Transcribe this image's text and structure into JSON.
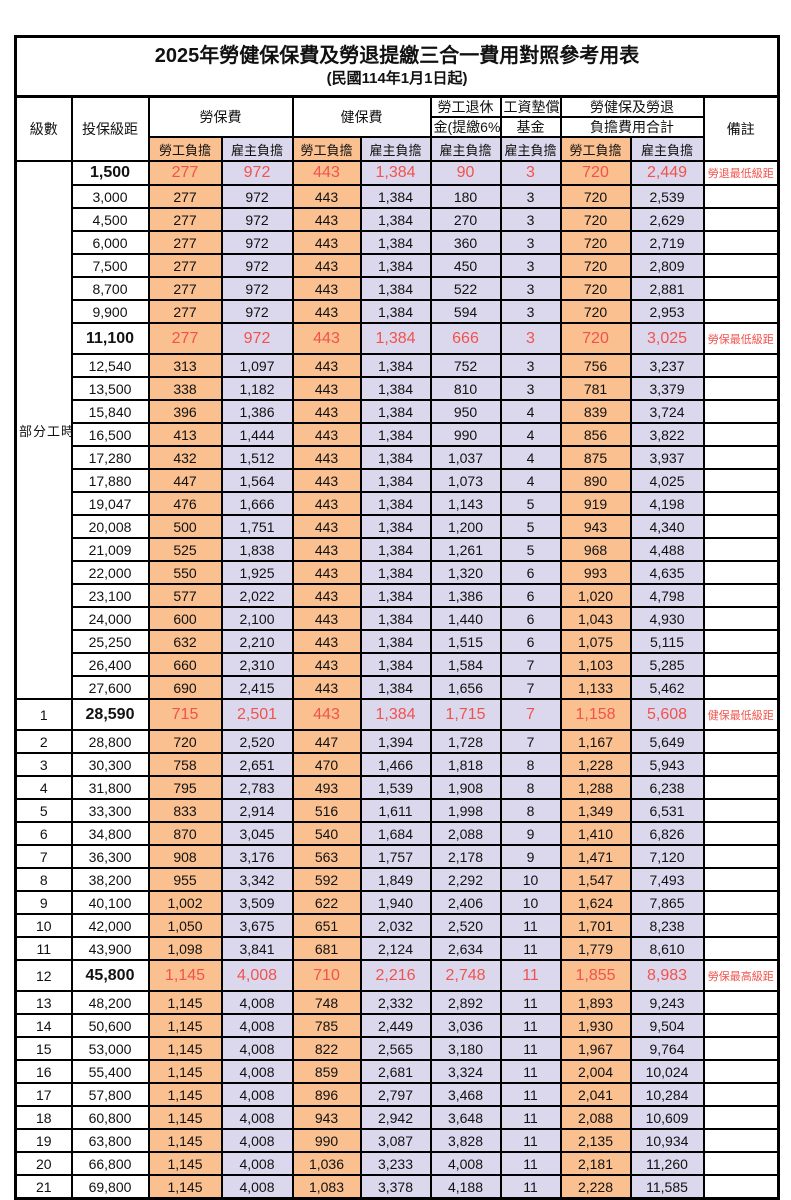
{
  "colors": {
    "employee_bg": "#FAC090",
    "employer_bg": "#DBD8ED",
    "highlight_red": "#F2524C"
  },
  "title": {
    "line1": "2025年勞健保保費及勞退提繳三合一費用對照參考用表",
    "line2": "(民國114年1月1日起)"
  },
  "header": {
    "level": "級數",
    "bracket": "投保級距",
    "labor_group": "勞保費",
    "health_group": "健保費",
    "pension_line1": "勞工退休",
    "pension_line2": "金(提繳6%)",
    "wage_fund_line1": "工資墊償",
    "wage_fund_line2": "基金",
    "total_line1": "勞健保及勞退",
    "total_line2": "負擔費用合計",
    "employee_share": "勞工負擔",
    "employer_share": "雇主負擔",
    "remark": "備註",
    "part_time_label": "部分工時"
  },
  "part_time_span": 23,
  "rows": [
    {
      "level": "",
      "bracket": "1,500",
      "labor_emp": "277",
      "labor_er": "972",
      "health_emp": "443",
      "health_er": "1,384",
      "pension_er": "90",
      "fund_er": "3",
      "total_emp": "720",
      "total_er": "2,449",
      "remark": "勞退最低級距",
      "red": true,
      "first_red": true
    },
    {
      "level": "",
      "bracket": "3,000",
      "labor_emp": "277",
      "labor_er": "972",
      "health_emp": "443",
      "health_er": "1,384",
      "pension_er": "180",
      "fund_er": "3",
      "total_emp": "720",
      "total_er": "2,539",
      "remark": "",
      "red": false
    },
    {
      "level": "",
      "bracket": "4,500",
      "labor_emp": "277",
      "labor_er": "972",
      "health_emp": "443",
      "health_er": "1,384",
      "pension_er": "270",
      "fund_er": "3",
      "total_emp": "720",
      "total_er": "2,629",
      "remark": "",
      "red": false
    },
    {
      "level": "",
      "bracket": "6,000",
      "labor_emp": "277",
      "labor_er": "972",
      "health_emp": "443",
      "health_er": "1,384",
      "pension_er": "360",
      "fund_er": "3",
      "total_emp": "720",
      "total_er": "2,719",
      "remark": "",
      "red": false
    },
    {
      "level": "",
      "bracket": "7,500",
      "labor_emp": "277",
      "labor_er": "972",
      "health_emp": "443",
      "health_er": "1,384",
      "pension_er": "450",
      "fund_er": "3",
      "total_emp": "720",
      "total_er": "2,809",
      "remark": "",
      "red": false
    },
    {
      "level": "",
      "bracket": "8,700",
      "labor_emp": "277",
      "labor_er": "972",
      "health_emp": "443",
      "health_er": "1,384",
      "pension_er": "522",
      "fund_er": "3",
      "total_emp": "720",
      "total_er": "2,881",
      "remark": "",
      "red": false
    },
    {
      "level": "",
      "bracket": "9,900",
      "labor_emp": "277",
      "labor_er": "972",
      "health_emp": "443",
      "health_er": "1,384",
      "pension_er": "594",
      "fund_er": "3",
      "total_emp": "720",
      "total_er": "2,953",
      "remark": "",
      "red": false
    },
    {
      "level": "",
      "bracket": "11,100",
      "labor_emp": "277",
      "labor_er": "972",
      "health_emp": "443",
      "health_er": "1,384",
      "pension_er": "666",
      "fund_er": "3",
      "total_emp": "720",
      "total_er": "3,025",
      "remark": "勞保最低級距",
      "red": true
    },
    {
      "level": "",
      "bracket": "12,540",
      "labor_emp": "313",
      "labor_er": "1,097",
      "health_emp": "443",
      "health_er": "1,384",
      "pension_er": "752",
      "fund_er": "3",
      "total_emp": "756",
      "total_er": "3,237",
      "remark": "",
      "red": false
    },
    {
      "level": "",
      "bracket": "13,500",
      "labor_emp": "338",
      "labor_er": "1,182",
      "health_emp": "443",
      "health_er": "1,384",
      "pension_er": "810",
      "fund_er": "3",
      "total_emp": "781",
      "total_er": "3,379",
      "remark": "",
      "red": false
    },
    {
      "level": "",
      "bracket": "15,840",
      "labor_emp": "396",
      "labor_er": "1,386",
      "health_emp": "443",
      "health_er": "1,384",
      "pension_er": "950",
      "fund_er": "4",
      "total_emp": "839",
      "total_er": "3,724",
      "remark": "",
      "red": false
    },
    {
      "level": "",
      "bracket": "16,500",
      "labor_emp": "413",
      "labor_er": "1,444",
      "health_emp": "443",
      "health_er": "1,384",
      "pension_er": "990",
      "fund_er": "4",
      "total_emp": "856",
      "total_er": "3,822",
      "remark": "",
      "red": false
    },
    {
      "level": "",
      "bracket": "17,280",
      "labor_emp": "432",
      "labor_er": "1,512",
      "health_emp": "443",
      "health_er": "1,384",
      "pension_er": "1,037",
      "fund_er": "4",
      "total_emp": "875",
      "total_er": "3,937",
      "remark": "",
      "red": false
    },
    {
      "level": "",
      "bracket": "17,880",
      "labor_emp": "447",
      "labor_er": "1,564",
      "health_emp": "443",
      "health_er": "1,384",
      "pension_er": "1,073",
      "fund_er": "4",
      "total_emp": "890",
      "total_er": "4,025",
      "remark": "",
      "red": false
    },
    {
      "level": "",
      "bracket": "19,047",
      "labor_emp": "476",
      "labor_er": "1,666",
      "health_emp": "443",
      "health_er": "1,384",
      "pension_er": "1,143",
      "fund_er": "5",
      "total_emp": "919",
      "total_er": "4,198",
      "remark": "",
      "red": false
    },
    {
      "level": "",
      "bracket": "20,008",
      "labor_emp": "500",
      "labor_er": "1,751",
      "health_emp": "443",
      "health_er": "1,384",
      "pension_er": "1,200",
      "fund_er": "5",
      "total_emp": "943",
      "total_er": "4,340",
      "remark": "",
      "red": false
    },
    {
      "level": "",
      "bracket": "21,009",
      "labor_emp": "525",
      "labor_er": "1,838",
      "health_emp": "443",
      "health_er": "1,384",
      "pension_er": "1,261",
      "fund_er": "5",
      "total_emp": "968",
      "total_er": "4,488",
      "remark": "",
      "red": false
    },
    {
      "level": "",
      "bracket": "22,000",
      "labor_emp": "550",
      "labor_er": "1,925",
      "health_emp": "443",
      "health_er": "1,384",
      "pension_er": "1,320",
      "fund_er": "6",
      "total_emp": "993",
      "total_er": "4,635",
      "remark": "",
      "red": false
    },
    {
      "level": "",
      "bracket": "23,100",
      "labor_emp": "577",
      "labor_er": "2,022",
      "health_emp": "443",
      "health_er": "1,384",
      "pension_er": "1,386",
      "fund_er": "6",
      "total_emp": "1,020",
      "total_er": "4,798",
      "remark": "",
      "red": false
    },
    {
      "level": "",
      "bracket": "24,000",
      "labor_emp": "600",
      "labor_er": "2,100",
      "health_emp": "443",
      "health_er": "1,384",
      "pension_er": "1,440",
      "fund_er": "6",
      "total_emp": "1,043",
      "total_er": "4,930",
      "remark": "",
      "red": false
    },
    {
      "level": "",
      "bracket": "25,250",
      "labor_emp": "632",
      "labor_er": "2,210",
      "health_emp": "443",
      "health_er": "1,384",
      "pension_er": "1,515",
      "fund_er": "6",
      "total_emp": "1,075",
      "total_er": "5,115",
      "remark": "",
      "red": false
    },
    {
      "level": "",
      "bracket": "26,400",
      "labor_emp": "660",
      "labor_er": "2,310",
      "health_emp": "443",
      "health_er": "1,384",
      "pension_er": "1,584",
      "fund_er": "7",
      "total_emp": "1,103",
      "total_er": "5,285",
      "remark": "",
      "red": false
    },
    {
      "level": "",
      "bracket": "27,600",
      "labor_emp": "690",
      "labor_er": "2,415",
      "health_emp": "443",
      "health_er": "1,384",
      "pension_er": "1,656",
      "fund_er": "7",
      "total_emp": "1,133",
      "total_er": "5,462",
      "remark": "",
      "red": false
    },
    {
      "level": "1",
      "bracket": "28,590",
      "labor_emp": "715",
      "labor_er": "2,501",
      "health_emp": "443",
      "health_er": "1,384",
      "pension_er": "1,715",
      "fund_er": "7",
      "total_emp": "1,158",
      "total_er": "5,608",
      "remark": "健保最低級距",
      "red": true
    },
    {
      "level": "2",
      "bracket": "28,800",
      "labor_emp": "720",
      "labor_er": "2,520",
      "health_emp": "447",
      "health_er": "1,394",
      "pension_er": "1,728",
      "fund_er": "7",
      "total_emp": "1,167",
      "total_er": "5,649",
      "remark": "",
      "red": false
    },
    {
      "level": "3",
      "bracket": "30,300",
      "labor_emp": "758",
      "labor_er": "2,651",
      "health_emp": "470",
      "health_er": "1,466",
      "pension_er": "1,818",
      "fund_er": "8",
      "total_emp": "1,228",
      "total_er": "5,943",
      "remark": "",
      "red": false
    },
    {
      "level": "4",
      "bracket": "31,800",
      "labor_emp": "795",
      "labor_er": "2,783",
      "health_emp": "493",
      "health_er": "1,539",
      "pension_er": "1,908",
      "fund_er": "8",
      "total_emp": "1,288",
      "total_er": "6,238",
      "remark": "",
      "red": false
    },
    {
      "level": "5",
      "bracket": "33,300",
      "labor_emp": "833",
      "labor_er": "2,914",
      "health_emp": "516",
      "health_er": "1,611",
      "pension_er": "1,998",
      "fund_er": "8",
      "total_emp": "1,349",
      "total_er": "6,531",
      "remark": "",
      "red": false
    },
    {
      "level": "6",
      "bracket": "34,800",
      "labor_emp": "870",
      "labor_er": "3,045",
      "health_emp": "540",
      "health_er": "1,684",
      "pension_er": "2,088",
      "fund_er": "9",
      "total_emp": "1,410",
      "total_er": "6,826",
      "remark": "",
      "red": false
    },
    {
      "level": "7",
      "bracket": "36,300",
      "labor_emp": "908",
      "labor_er": "3,176",
      "health_emp": "563",
      "health_er": "1,757",
      "pension_er": "2,178",
      "fund_er": "9",
      "total_emp": "1,471",
      "total_er": "7,120",
      "remark": "",
      "red": false
    },
    {
      "level": "8",
      "bracket": "38,200",
      "labor_emp": "955",
      "labor_er": "3,342",
      "health_emp": "592",
      "health_er": "1,849",
      "pension_er": "2,292",
      "fund_er": "10",
      "total_emp": "1,547",
      "total_er": "7,493",
      "remark": "",
      "red": false
    },
    {
      "level": "9",
      "bracket": "40,100",
      "labor_emp": "1,002",
      "labor_er": "3,509",
      "health_emp": "622",
      "health_er": "1,940",
      "pension_er": "2,406",
      "fund_er": "10",
      "total_emp": "1,624",
      "total_er": "7,865",
      "remark": "",
      "red": false
    },
    {
      "level": "10",
      "bracket": "42,000",
      "labor_emp": "1,050",
      "labor_er": "3,675",
      "health_emp": "651",
      "health_er": "2,032",
      "pension_er": "2,520",
      "fund_er": "11",
      "total_emp": "1,701",
      "total_er": "8,238",
      "remark": "",
      "red": false
    },
    {
      "level": "11",
      "bracket": "43,900",
      "labor_emp": "1,098",
      "labor_er": "3,841",
      "health_emp": "681",
      "health_er": "2,124",
      "pension_er": "2,634",
      "fund_er": "11",
      "total_emp": "1,779",
      "total_er": "8,610",
      "remark": "",
      "red": false
    },
    {
      "level": "12",
      "bracket": "45,800",
      "labor_emp": "1,145",
      "labor_er": "4,008",
      "health_emp": "710",
      "health_er": "2,216",
      "pension_er": "2,748",
      "fund_er": "11",
      "total_emp": "1,855",
      "total_er": "8,983",
      "remark": "勞保最高級距",
      "red": true
    },
    {
      "level": "13",
      "bracket": "48,200",
      "labor_emp": "1,145",
      "labor_er": "4,008",
      "health_emp": "748",
      "health_er": "2,332",
      "pension_er": "2,892",
      "fund_er": "11",
      "total_emp": "1,893",
      "total_er": "9,243",
      "remark": "",
      "red": false
    },
    {
      "level": "14",
      "bracket": "50,600",
      "labor_emp": "1,145",
      "labor_er": "4,008",
      "health_emp": "785",
      "health_er": "2,449",
      "pension_er": "3,036",
      "fund_er": "11",
      "total_emp": "1,930",
      "total_er": "9,504",
      "remark": "",
      "red": false
    },
    {
      "level": "15",
      "bracket": "53,000",
      "labor_emp": "1,145",
      "labor_er": "4,008",
      "health_emp": "822",
      "health_er": "2,565",
      "pension_er": "3,180",
      "fund_er": "11",
      "total_emp": "1,967",
      "total_er": "9,764",
      "remark": "",
      "red": false
    },
    {
      "level": "16",
      "bracket": "55,400",
      "labor_emp": "1,145",
      "labor_er": "4,008",
      "health_emp": "859",
      "health_er": "2,681",
      "pension_er": "3,324",
      "fund_er": "11",
      "total_emp": "2,004",
      "total_er": "10,024",
      "remark": "",
      "red": false
    },
    {
      "level": "17",
      "bracket": "57,800",
      "labor_emp": "1,145",
      "labor_er": "4,008",
      "health_emp": "896",
      "health_er": "2,797",
      "pension_er": "3,468",
      "fund_er": "11",
      "total_emp": "2,041",
      "total_er": "10,284",
      "remark": "",
      "red": false
    },
    {
      "level": "18",
      "bracket": "60,800",
      "labor_emp": "1,145",
      "labor_er": "4,008",
      "health_emp": "943",
      "health_er": "2,942",
      "pension_er": "3,648",
      "fund_er": "11",
      "total_emp": "2,088",
      "total_er": "10,609",
      "remark": "",
      "red": false
    },
    {
      "level": "19",
      "bracket": "63,800",
      "labor_emp": "1,145",
      "labor_er": "4,008",
      "health_emp": "990",
      "health_er": "3,087",
      "pension_er": "3,828",
      "fund_er": "11",
      "total_emp": "2,135",
      "total_er": "10,934",
      "remark": "",
      "red": false
    },
    {
      "level": "20",
      "bracket": "66,800",
      "labor_emp": "1,145",
      "labor_er": "4,008",
      "health_emp": "1,036",
      "health_er": "3,233",
      "pension_er": "4,008",
      "fund_er": "11",
      "total_emp": "2,181",
      "total_er": "11,260",
      "remark": "",
      "red": false
    },
    {
      "level": "21",
      "bracket": "69,800",
      "labor_emp": "1,145",
      "labor_er": "4,008",
      "health_emp": "1,083",
      "health_er": "3,378",
      "pension_er": "4,188",
      "fund_er": "11",
      "total_emp": "2,228",
      "total_er": "11,585",
      "remark": "",
      "red": false
    }
  ]
}
